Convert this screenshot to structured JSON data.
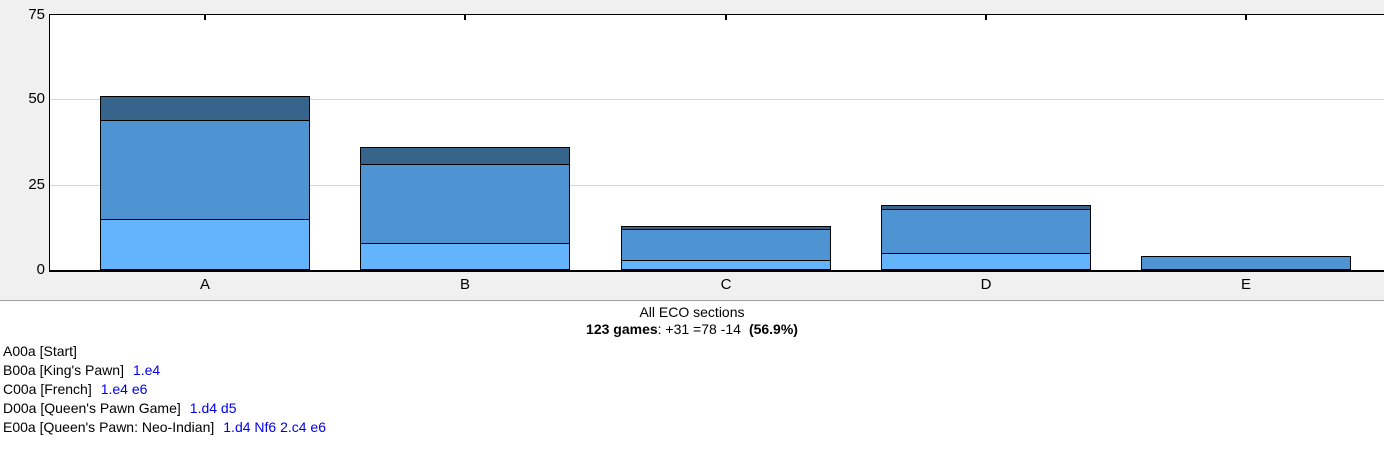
{
  "chart": {
    "summary_line1": "All ECO sections",
    "summary_games": "123 games",
    "summary_results": ": +31 =78 -14",
    "summary_score": "(56.9%)"
  },
  "chart_data": {
    "type": "bar",
    "stacked": true,
    "title": "All ECO sections",
    "subtitle": "123 games: +31 =78 -14 (56.9%)",
    "categories": [
      "A",
      "B",
      "C",
      "D",
      "E"
    ],
    "series": [
      {
        "name": "wins",
        "color": "#63b4fa",
        "values": [
          15,
          8,
          3,
          5,
          0
        ]
      },
      {
        "name": "draws",
        "color": "#4e94d2",
        "values": [
          29,
          23,
          9,
          13,
          4
        ]
      },
      {
        "name": "losses",
        "color": "#36648b",
        "values": [
          7,
          5,
          1,
          1,
          0
        ]
      }
    ],
    "totals": [
      51,
      36,
      13,
      19,
      4
    ],
    "ylim": [
      0,
      75
    ],
    "y_ticks": [
      0,
      25,
      50,
      75
    ],
    "grid": true,
    "legend": "none"
  },
  "eco_list": [
    {
      "label": "A00a [Start]",
      "moves": ""
    },
    {
      "label": "B00a [King's Pawn]",
      "moves": "1.e4"
    },
    {
      "label": "C00a [French]",
      "moves": "1.e4 e6"
    },
    {
      "label": "D00a [Queen's Pawn Game]",
      "moves": "1.d4 d5"
    },
    {
      "label": "E00a [Queen's Pawn: Neo-Indian]",
      "moves": "1.d4 Nf6 2.c4 e6"
    }
  ],
  "colors": {
    "win": "#63b4fa",
    "draw": "#4e94d2",
    "loss": "#36648b",
    "link": "#0000ee",
    "widget_bg": "#f0f0f0",
    "grid": "#d6d6d6"
  }
}
